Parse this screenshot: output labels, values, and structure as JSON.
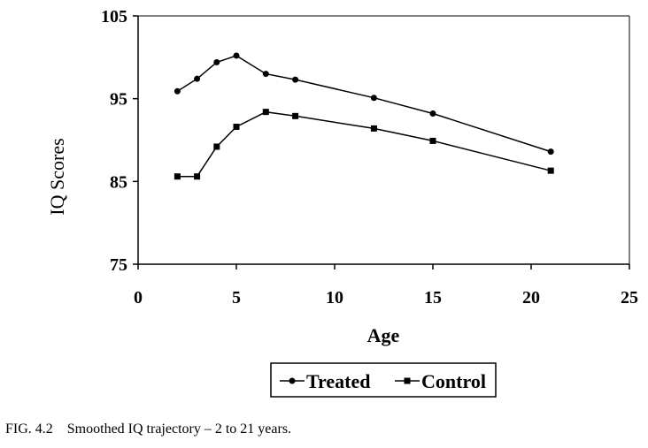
{
  "chart_data": {
    "type": "line",
    "xlabel": "Age",
    "ylabel": "IQ Scores",
    "xlim": [
      0,
      25
    ],
    "ylim": [
      75,
      105
    ],
    "xticks": [
      0,
      5,
      10,
      15,
      20,
      25
    ],
    "yticks": [
      75,
      85,
      95,
      105
    ],
    "grid": false,
    "legend_position": "bottom-center",
    "series": [
      {
        "name": "Treated",
        "marker": "circle",
        "color": "#000000",
        "x": [
          2,
          3,
          4,
          5,
          6.5,
          8,
          12,
          15,
          21
        ],
        "y": [
          95.9,
          97.4,
          99.4,
          100.2,
          98.0,
          97.3,
          95.1,
          93.2,
          88.6
        ]
      },
      {
        "name": "Control",
        "marker": "square",
        "color": "#000000",
        "x": [
          2,
          3,
          4,
          5,
          6.5,
          8,
          12,
          15,
          21
        ],
        "y": [
          85.6,
          85.6,
          89.2,
          91.6,
          93.4,
          92.9,
          91.4,
          89.9,
          86.3
        ]
      }
    ]
  },
  "caption": "FIG. 4.2    Smoothed IQ trajectory – 2 to 21 years."
}
